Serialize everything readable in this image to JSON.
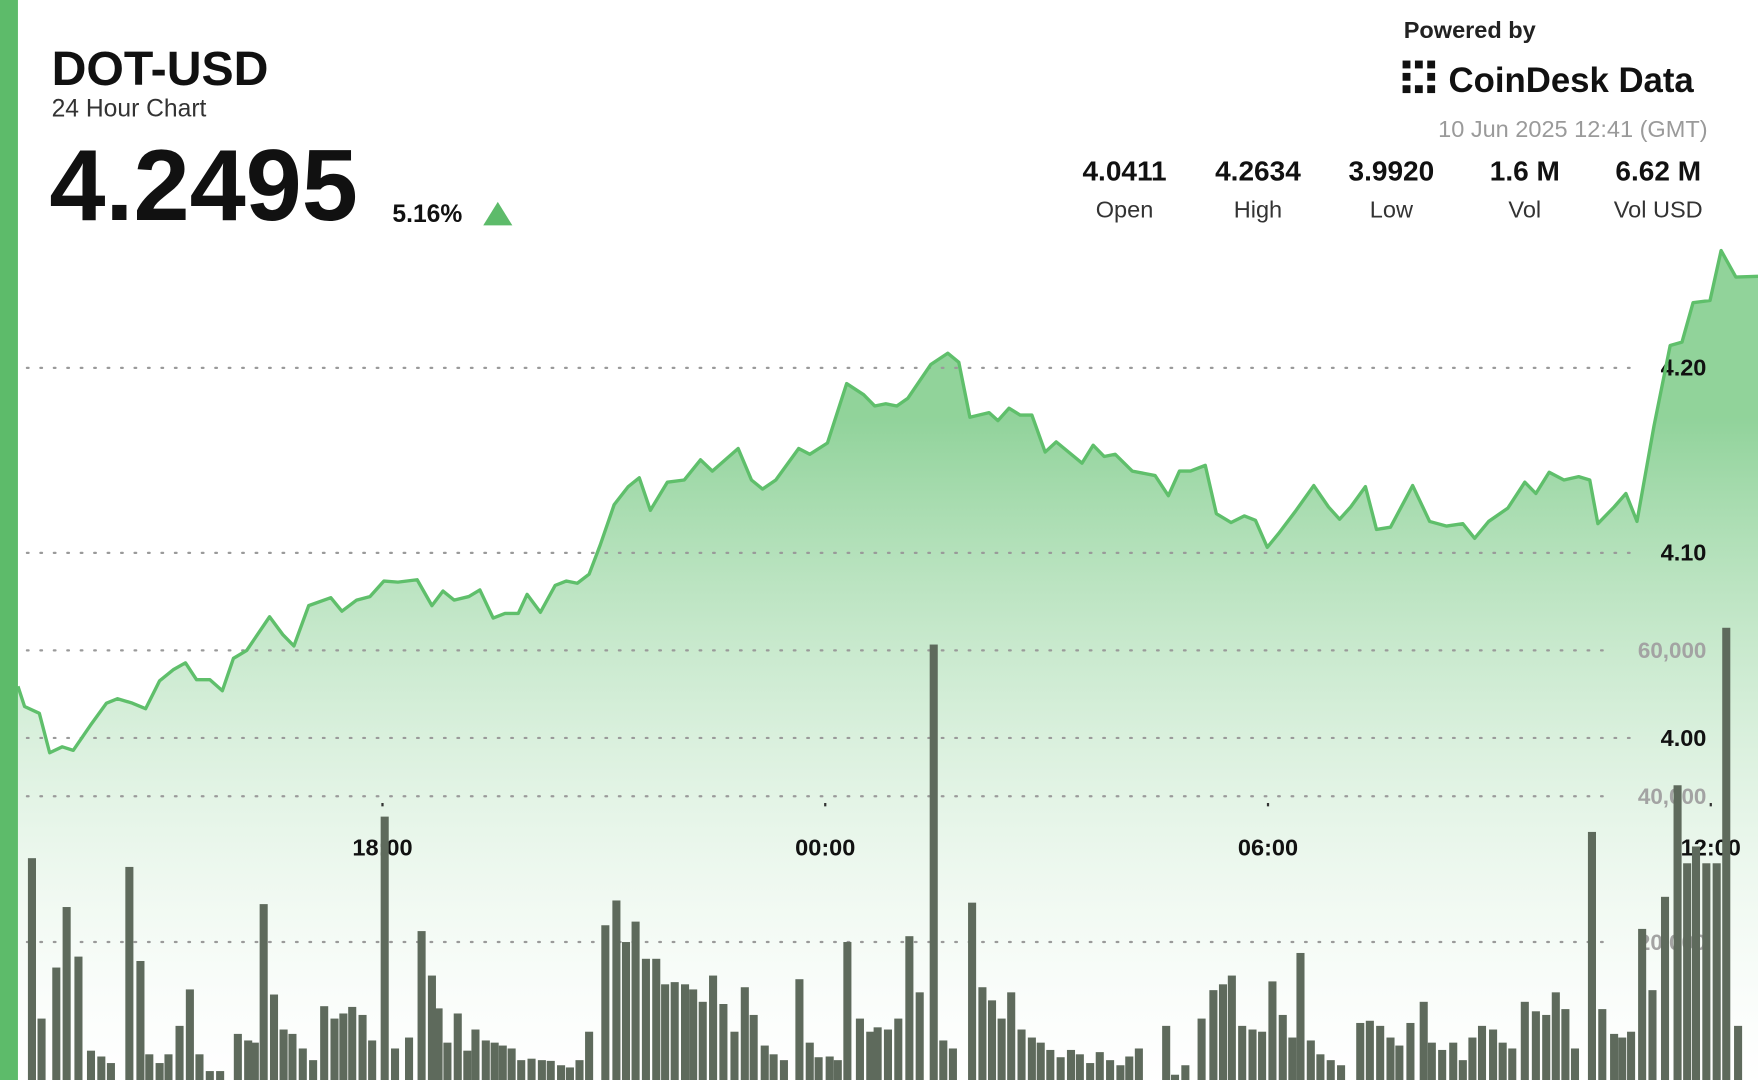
{
  "header": {
    "symbol": "DOT-USD",
    "subtitle": "24 Hour Chart",
    "price": "4.2495",
    "change": "5.16%",
    "powered_by": "Powered by",
    "brand": "CoinDesk Data",
    "timestamp": "10 Jun 2025 12:41 (GMT)",
    "stats": [
      {
        "value": "4.0411",
        "label": "Open"
      },
      {
        "value": "4.2634",
        "label": "High"
      },
      {
        "value": "3.9920",
        "label": "Low"
      },
      {
        "value": "1.6 M",
        "label": "Vol"
      },
      {
        "value": "6.62 M",
        "label": "Vol USD"
      }
    ]
  },
  "chart_data": {
    "type": "line",
    "xlim": [
      13.06,
      36.64
    ],
    "xticks": [
      {
        "value": 18,
        "label": "18:00"
      },
      {
        "value": 24,
        "label": "00:00"
      },
      {
        "value": 30,
        "label": "06:00"
      },
      {
        "value": 36,
        "label": "12:00"
      }
    ],
    "ylim": [
      3.8109,
      4.3988
    ],
    "yticks": [
      {
        "value": 4,
        "label": "4.00"
      },
      {
        "value": 4.1,
        "label": "4.10"
      },
      {
        "value": 4.2,
        "label": "4.20"
      }
    ],
    "y2lim": [
      0,
      149200
    ],
    "y2ticks": [
      {
        "value": 20000,
        "label": "20,000"
      },
      {
        "value": 40000,
        "label": "40,000"
      },
      {
        "value": 60000,
        "label": "60,000"
      }
    ],
    "grid": true,
    "series": [
      {
        "type": "line",
        "color": "#5fbf6b",
        "x": [
          13.06,
          13.15,
          13.35,
          13.49,
          13.66,
          13.81,
          14.04,
          14.26,
          14.41,
          14.61,
          14.79,
          14.98,
          15.17,
          15.33,
          15.48,
          15.66,
          15.83,
          15.98,
          16.16,
          16.47,
          16.65,
          16.8,
          17.0,
          17.3,
          17.45,
          17.65,
          17.83,
          18.02,
          18.21,
          18.47,
          18.67,
          18.82,
          18.97,
          19.17,
          19.32,
          19.5,
          19.66,
          19.84,
          19.96,
          20.14,
          20.34,
          20.49,
          20.64,
          20.8,
          20.95,
          21.14,
          21.33,
          21.48,
          21.63,
          21.86,
          22.09,
          22.31,
          22.47,
          22.82,
          23.0,
          23.15,
          23.33,
          23.64,
          23.79,
          24.03,
          24.29,
          24.52,
          24.67,
          24.82,
          24.97,
          25.12,
          25.43,
          25.66,
          25.81,
          25.96,
          26.22,
          26.34,
          26.49,
          26.64,
          26.8,
          26.98,
          27.13,
          27.48,
          27.63,
          27.78,
          27.93,
          28.16,
          28.47,
          28.65,
          28.8,
          28.95,
          29.15,
          29.3,
          29.5,
          29.68,
          29.83,
          29.99,
          30.14,
          30.37,
          30.62,
          30.82,
          30.97,
          31.12,
          31.32,
          31.47,
          31.66,
          31.96,
          32.19,
          32.42,
          32.64,
          32.8,
          32.99,
          33.25,
          33.48,
          33.63,
          33.81,
          34.01,
          34.21,
          34.36,
          34.47,
          34.69,
          34.85,
          35.0,
          35.23,
          35.45,
          35.61,
          35.76,
          35.99,
          36.14,
          36.34,
          36.64
        ],
        "values": [
          4.0279,
          4.017,
          4.0133,
          3.992,
          3.9952,
          3.9933,
          4.0067,
          4.0188,
          4.0212,
          4.0188,
          4.0158,
          4.0309,
          4.037,
          4.0406,
          4.0315,
          4.0315,
          4.0255,
          4.043,
          4.0473,
          4.0655,
          4.0558,
          4.0497,
          4.0715,
          4.0758,
          4.0685,
          4.0745,
          4.0764,
          4.0848,
          4.0842,
          4.0855,
          4.0715,
          4.0794,
          4.0745,
          4.0764,
          4.08,
          4.0648,
          4.0673,
          4.0673,
          4.0776,
          4.0679,
          4.0824,
          4.0848,
          4.0836,
          4.0885,
          4.1042,
          4.1261,
          4.1358,
          4.1406,
          4.123,
          4.1382,
          4.1394,
          4.1503,
          4.1442,
          4.1564,
          4.1394,
          4.1345,
          4.1394,
          4.1564,
          4.1533,
          4.1594,
          4.1915,
          4.1855,
          4.1794,
          4.1806,
          4.1794,
          4.1836,
          4.2018,
          4.2079,
          4.203,
          4.1733,
          4.1758,
          4.1715,
          4.1782,
          4.1745,
          4.1745,
          4.1545,
          4.16,
          4.1485,
          4.1582,
          4.1521,
          4.1533,
          4.1442,
          4.1418,
          4.1309,
          4.1442,
          4.1442,
          4.1473,
          4.1212,
          4.1164,
          4.12,
          4.1176,
          4.103,
          4.1103,
          4.1224,
          4.1364,
          4.1248,
          4.1182,
          4.1248,
          4.1358,
          4.1127,
          4.1139,
          4.1364,
          4.117,
          4.1145,
          4.1158,
          4.1079,
          4.117,
          4.1242,
          4.1382,
          4.1321,
          4.1436,
          4.1394,
          4.1412,
          4.1394,
          4.1158,
          4.1248,
          4.1321,
          4.117,
          4.1685,
          4.2121,
          4.2139,
          4.2352,
          4.2364,
          4.2634,
          4.2491,
          4.2495
        ]
      },
      {
        "type": "bar",
        "axis": "y2",
        "color": "#5e6a5c",
        "x": [
          13.25,
          13.38,
          13.58,
          13.72,
          13.88,
          14.05,
          14.19,
          14.32,
          14.57,
          14.72,
          14.84,
          14.98,
          15.1,
          15.25,
          15.39,
          15.52,
          15.66,
          15.8,
          16.04,
          16.18,
          16.27,
          16.39,
          16.53,
          16.66,
          16.78,
          16.92,
          17.06,
          17.21,
          17.35,
          17.47,
          17.59,
          17.73,
          17.86,
          18.03,
          18.17,
          18.36,
          18.53,
          18.67,
          18.76,
          18.88,
          19.02,
          19.15,
          19.26,
          19.4,
          19.52,
          19.63,
          19.75,
          19.88,
          20.02,
          20.16,
          20.28,
          20.42,
          20.54,
          20.67,
          20.8,
          21.02,
          21.17,
          21.3,
          21.43,
          21.57,
          21.71,
          21.83,
          21.96,
          22.1,
          22.21,
          22.34,
          22.48,
          22.62,
          22.77,
          22.91,
          23.03,
          23.18,
          23.3,
          23.44,
          23.65,
          23.79,
          23.91,
          24.06,
          24.17,
          24.3,
          24.47,
          24.61,
          24.71,
          24.85,
          24.99,
          25.14,
          25.28,
          25.47,
          25.6,
          25.73,
          25.99,
          26.13,
          26.26,
          26.39,
          26.52,
          26.66,
          26.8,
          26.92,
          27.05,
          27.19,
          27.33,
          27.45,
          27.59,
          27.72,
          27.86,
          28.0,
          28.12,
          28.25,
          28.62,
          28.74,
          28.88,
          29.1,
          29.26,
          29.39,
          29.51,
          29.65,
          29.79,
          29.92,
          30.06,
          30.2,
          30.33,
          30.44,
          30.58,
          30.71,
          30.85,
          30.99,
          31.25,
          31.38,
          31.52,
          31.66,
          31.78,
          31.93,
          32.11,
          32.22,
          32.36,
          32.51,
          32.64,
          32.77,
          32.9,
          33.05,
          33.18,
          33.31,
          33.48,
          33.63,
          33.77,
          33.9,
          34.03,
          34.16,
          34.39,
          34.53,
          34.69,
          34.8,
          34.92,
          35.07,
          35.21,
          35.38,
          35.55,
          35.68,
          35.8,
          35.94,
          36.08,
          36.21,
          36.37
        ],
        "values": [
          31500,
          9500,
          16500,
          24800,
          18000,
          5100,
          4300,
          3400,
          30300,
          17400,
          4600,
          3400,
          4600,
          8500,
          13500,
          4600,
          2300,
          2300,
          7400,
          6500,
          6200,
          25200,
          12800,
          8000,
          7400,
          5400,
          3800,
          11200,
          9500,
          10200,
          11100,
          10000,
          6500,
          37200,
          5400,
          6900,
          21500,
          15400,
          10900,
          6200,
          10200,
          5100,
          8000,
          6500,
          6200,
          5800,
          5400,
          3800,
          4000,
          3800,
          3700,
          3100,
          2800,
          3800,
          7700,
          22300,
          25700,
          20000,
          22800,
          17700,
          17700,
          14200,
          14500,
          14200,
          13500,
          11800,
          15400,
          11500,
          7700,
          13800,
          10000,
          5800,
          4600,
          3800,
          14900,
          6200,
          4200,
          4300,
          3800,
          20000,
          9500,
          7700,
          8300,
          8000,
          9500,
          20800,
          13100,
          60800,
          6500,
          5400,
          25400,
          13800,
          12000,
          9500,
          13100,
          8000,
          6900,
          6200,
          5200,
          4200,
          5200,
          4600,
          3400,
          4900,
          3800,
          3100,
          4300,
          5400,
          8500,
          1800,
          3100,
          9500,
          13400,
          14200,
          15400,
          8500,
          8000,
          7700,
          14600,
          10000,
          6900,
          18500,
          6500,
          4600,
          3800,
          3100,
          8900,
          9200,
          8500,
          6900,
          5800,
          8900,
          11800,
          6200,
          5200,
          6200,
          3800,
          6900,
          8500,
          8000,
          6200,
          5400,
          11800,
          10500,
          10000,
          13100,
          10800,
          5400,
          35100,
          10800,
          7400,
          6900,
          7700,
          21800,
          13400,
          26200,
          41500,
          30800,
          33100,
          30800,
          30800,
          63100,
          8500
        ]
      }
    ]
  }
}
